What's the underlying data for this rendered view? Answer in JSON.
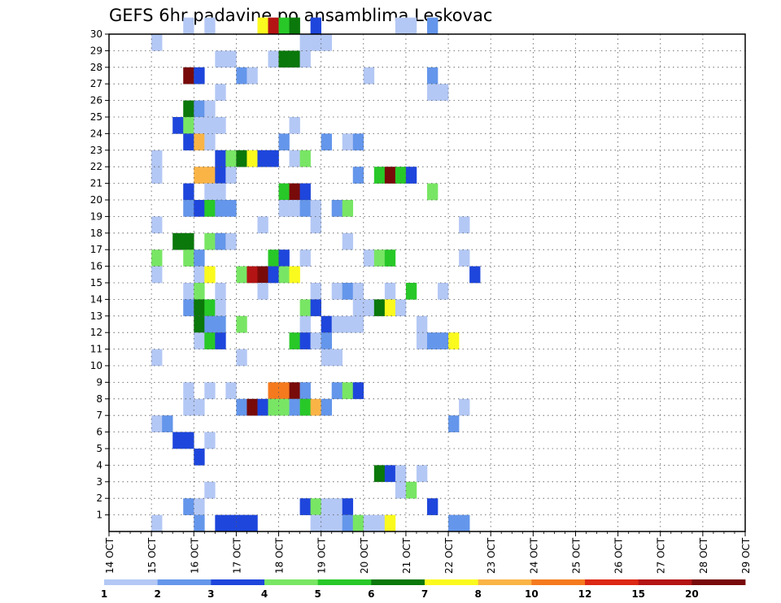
{
  "chart_data": {
    "type": "heatmap",
    "title": "GEFS 6hr padavine po ansamblima Leskovac",
    "x_tick_labels": [
      "14 OCT",
      "15 OCT",
      "16 OCT",
      "17 OCT",
      "18 OCT",
      "19 OCT",
      "20 OCT",
      "21 OCT",
      "22 OCT",
      "23 OCT",
      "24 OCT",
      "25 OCT",
      "26 OCT",
      "27 OCT",
      "28 OCT",
      "29 OCT"
    ],
    "y_tick_labels": [
      "1",
      "2",
      "3",
      "4",
      "5",
      "6",
      "7",
      "8",
      "9",
      "10",
      "11",
      "12",
      "13",
      "14",
      "15",
      "16",
      "17",
      "18",
      "19",
      "20",
      "21",
      "22",
      "23",
      "24",
      "25",
      "26",
      "27",
      "28",
      "29",
      "30"
    ],
    "xlim": [
      "14 OCT 00Z",
      "29 OCT 00Z"
    ],
    "ylim": [
      0,
      30
    ],
    "x_unit": "6-hour steps from 14 OCT 00Z",
    "grid": true,
    "legend": {
      "placement": "bottom",
      "labels": [
        "1",
        "2",
        "3",
        "4",
        "5",
        "6",
        "7",
        "8",
        "10",
        "12",
        "15",
        "20"
      ],
      "colors": [
        "#b4c8f5",
        "#6496eb",
        "#1e46dc",
        "#78e664",
        "#28c828",
        "#0a780a",
        "#fafa1e",
        "#fab446",
        "#f57a1e",
        "#dc2814",
        "#b41414",
        "#780a0a"
      ]
    },
    "cells": [
      [
        7,
        30,
        1
      ],
      [
        9,
        30,
        1
      ],
      [
        14,
        30,
        7
      ],
      [
        15,
        30,
        11
      ],
      [
        16,
        30,
        5
      ],
      [
        17,
        30,
        6
      ],
      [
        19,
        30,
        3
      ],
      [
        27,
        30,
        1
      ],
      [
        28,
        30,
        1
      ],
      [
        30,
        30,
        2
      ],
      [
        4,
        29,
        1
      ],
      [
        18,
        29,
        1
      ],
      [
        19,
        29,
        1
      ],
      [
        20,
        29,
        1
      ],
      [
        10,
        28,
        1
      ],
      [
        11,
        28,
        1
      ],
      [
        15,
        28,
        1
      ],
      [
        16,
        28,
        6
      ],
      [
        17,
        28,
        6
      ],
      [
        18,
        28,
        1
      ],
      [
        7,
        27,
        12
      ],
      [
        8,
        27,
        3
      ],
      [
        12,
        27,
        2
      ],
      [
        13,
        27,
        1
      ],
      [
        24,
        27,
        1
      ],
      [
        30,
        27,
        2
      ],
      [
        10,
        26,
        1
      ],
      [
        30,
        26,
        1
      ],
      [
        31,
        26,
        1
      ],
      [
        7,
        25,
        6
      ],
      [
        8,
        25,
        2
      ],
      [
        9,
        25,
        1
      ],
      [
        6,
        24,
        3
      ],
      [
        7,
        24,
        4
      ],
      [
        8,
        24,
        1
      ],
      [
        9,
        24,
        1
      ],
      [
        10,
        24,
        1
      ],
      [
        17,
        24,
        1
      ],
      [
        7,
        23,
        3
      ],
      [
        8,
        23,
        8
      ],
      [
        9,
        23,
        1
      ],
      [
        16,
        23,
        2
      ],
      [
        20,
        23,
        2
      ],
      [
        22,
        23,
        1
      ],
      [
        23,
        23,
        2
      ],
      [
        4,
        22,
        1
      ],
      [
        10,
        22,
        3
      ],
      [
        11,
        22,
        4
      ],
      [
        12,
        22,
        6
      ],
      [
        13,
        22,
        7
      ],
      [
        14,
        22,
        3
      ],
      [
        15,
        22,
        3
      ],
      [
        17,
        22,
        1
      ],
      [
        18,
        22,
        4
      ],
      [
        4,
        21,
        1
      ],
      [
        8,
        21,
        8
      ],
      [
        9,
        21,
        8
      ],
      [
        10,
        21,
        3
      ],
      [
        11,
        21,
        1
      ],
      [
        23,
        21,
        2
      ],
      [
        25,
        21,
        5
      ],
      [
        26,
        21,
        12
      ],
      [
        27,
        21,
        5
      ],
      [
        28,
        21,
        3
      ],
      [
        7,
        20,
        3
      ],
      [
        9,
        20,
        1
      ],
      [
        10,
        20,
        1
      ],
      [
        16,
        20,
        5
      ],
      [
        17,
        20,
        12
      ],
      [
        18,
        20,
        3
      ],
      [
        30,
        20,
        4
      ],
      [
        7,
        19,
        2
      ],
      [
        8,
        19,
        3
      ],
      [
        9,
        19,
        5
      ],
      [
        10,
        19,
        2
      ],
      [
        11,
        19,
        2
      ],
      [
        16,
        19,
        1
      ],
      [
        17,
        19,
        1
      ],
      [
        18,
        19,
        2
      ],
      [
        19,
        19,
        1
      ],
      [
        21,
        19,
        2
      ],
      [
        22,
        19,
        4
      ],
      [
        4,
        18,
        1
      ],
      [
        14,
        18,
        1
      ],
      [
        19,
        18,
        1
      ],
      [
        33,
        18,
        1
      ],
      [
        6,
        17,
        6
      ],
      [
        7,
        17,
        6
      ],
      [
        9,
        17,
        4
      ],
      [
        10,
        17,
        2
      ],
      [
        11,
        17,
        1
      ],
      [
        22,
        17,
        1
      ],
      [
        4,
        16,
        4
      ],
      [
        7,
        16,
        4
      ],
      [
        8,
        16,
        2
      ],
      [
        15,
        16,
        5
      ],
      [
        16,
        16,
        3
      ],
      [
        18,
        16,
        1
      ],
      [
        24,
        16,
        1
      ],
      [
        25,
        16,
        4
      ],
      [
        26,
        16,
        5
      ],
      [
        33,
        16,
        1
      ],
      [
        4,
        15,
        1
      ],
      [
        8,
        15,
        1
      ],
      [
        9,
        15,
        7
      ],
      [
        12,
        15,
        4
      ],
      [
        13,
        15,
        11
      ],
      [
        14,
        15,
        12
      ],
      [
        15,
        15,
        3
      ],
      [
        16,
        15,
        4
      ],
      [
        17,
        15,
        7
      ],
      [
        34,
        15,
        3
      ],
      [
        7,
        14,
        1
      ],
      [
        8,
        14,
        4
      ],
      [
        10,
        14,
        1
      ],
      [
        14,
        14,
        1
      ],
      [
        19,
        14,
        1
      ],
      [
        21,
        14,
        1
      ],
      [
        22,
        14,
        2
      ],
      [
        23,
        14,
        1
      ],
      [
        26,
        14,
        1
      ],
      [
        28,
        14,
        5
      ],
      [
        31,
        14,
        1
      ],
      [
        7,
        13,
        2
      ],
      [
        8,
        13,
        6
      ],
      [
        9,
        13,
        5
      ],
      [
        10,
        13,
        1
      ],
      [
        18,
        13,
        4
      ],
      [
        19,
        13,
        3
      ],
      [
        23,
        13,
        1
      ],
      [
        24,
        13,
        1
      ],
      [
        25,
        13,
        6
      ],
      [
        26,
        13,
        7
      ],
      [
        27,
        13,
        1
      ],
      [
        8,
        12,
        6
      ],
      [
        9,
        12,
        2
      ],
      [
        10,
        12,
        2
      ],
      [
        12,
        12,
        4
      ],
      [
        18,
        12,
        1
      ],
      [
        20,
        12,
        3
      ],
      [
        21,
        12,
        1
      ],
      [
        22,
        12,
        1
      ],
      [
        23,
        12,
        1
      ],
      [
        29,
        12,
        1
      ],
      [
        8,
        11,
        1
      ],
      [
        9,
        11,
        5
      ],
      [
        10,
        11,
        3
      ],
      [
        17,
        11,
        5
      ],
      [
        18,
        11,
        3
      ],
      [
        19,
        11,
        1
      ],
      [
        20,
        11,
        2
      ],
      [
        29,
        11,
        1
      ],
      [
        30,
        11,
        2
      ],
      [
        31,
        11,
        2
      ],
      [
        32,
        11,
        7
      ],
      [
        4,
        10,
        1
      ],
      [
        12,
        10,
        1
      ],
      [
        20,
        10,
        1
      ],
      [
        21,
        10,
        1
      ],
      [
        7,
        8,
        1
      ],
      [
        9,
        8,
        1
      ],
      [
        11,
        8,
        1
      ],
      [
        15,
        8,
        9
      ],
      [
        16,
        8,
        9
      ],
      [
        17,
        8,
        12
      ],
      [
        18,
        8,
        2
      ],
      [
        21,
        8,
        2
      ],
      [
        22,
        8,
        4
      ],
      [
        23,
        8,
        3
      ],
      [
        7,
        7,
        1
      ],
      [
        8,
        7,
        1
      ],
      [
        12,
        7,
        2
      ],
      [
        13,
        7,
        12
      ],
      [
        14,
        7,
        3
      ],
      [
        15,
        7,
        4
      ],
      [
        16,
        7,
        4
      ],
      [
        17,
        7,
        2
      ],
      [
        18,
        7,
        5
      ],
      [
        19,
        7,
        8
      ],
      [
        20,
        7,
        2
      ],
      [
        33,
        7,
        1
      ],
      [
        4,
        6,
        1
      ],
      [
        5,
        6,
        2
      ],
      [
        32,
        6,
        2
      ],
      [
        6,
        5,
        3
      ],
      [
        7,
        5,
        3
      ],
      [
        9,
        5,
        1
      ],
      [
        8,
        4,
        3
      ],
      [
        25,
        3,
        6
      ],
      [
        26,
        3,
        3
      ],
      [
        27,
        3,
        1
      ],
      [
        29,
        3,
        1
      ],
      [
        9,
        2,
        1
      ],
      [
        27,
        2,
        1
      ],
      [
        28,
        2,
        4
      ],
      [
        7,
        1,
        2
      ],
      [
        8,
        1,
        1
      ],
      [
        18,
        1,
        3
      ],
      [
        19,
        1,
        4
      ],
      [
        20,
        1,
        1
      ],
      [
        21,
        1,
        1
      ],
      [
        22,
        1,
        3
      ],
      [
        30,
        1,
        3
      ],
      [
        4,
        0,
        1
      ],
      [
        8,
        0,
        2
      ],
      [
        10,
        0,
        3
      ],
      [
        11,
        0,
        3
      ],
      [
        12,
        0,
        3
      ],
      [
        13,
        0,
        3
      ],
      [
        19,
        0,
        1
      ],
      [
        20,
        0,
        1
      ],
      [
        21,
        0,
        1
      ],
      [
        22,
        0,
        2
      ],
      [
        23,
        0,
        4
      ],
      [
        24,
        0,
        1
      ],
      [
        25,
        0,
        1
      ],
      [
        26,
        0,
        7
      ],
      [
        32,
        0,
        2
      ],
      [
        33,
        0,
        2
      ]
    ]
  }
}
